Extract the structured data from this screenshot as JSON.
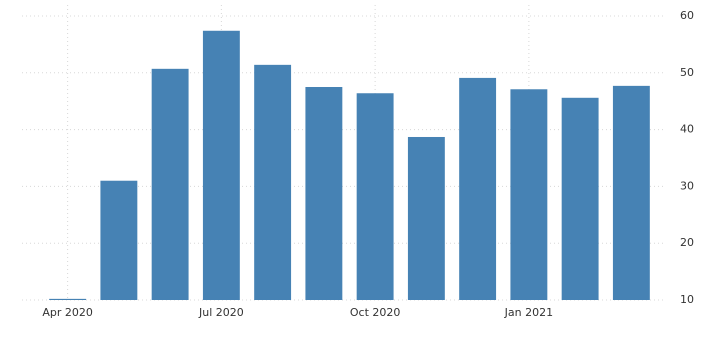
{
  "chart_data": {
    "type": "bar",
    "categories": [
      "Apr 2020",
      null,
      null,
      "Jul 2020",
      null,
      null,
      "Oct 2020",
      null,
      null,
      "Jan 2021",
      null,
      null
    ],
    "values": [
      10.2,
      31.0,
      50.7,
      57.4,
      51.4,
      47.5,
      46.4,
      38.7,
      49.1,
      47.1,
      45.6,
      47.7
    ],
    "color": "#4682b4",
    "ylim": [
      10,
      60
    ],
    "yticks": [
      10,
      20,
      30,
      40,
      50,
      60
    ],
    "grid": true
  }
}
